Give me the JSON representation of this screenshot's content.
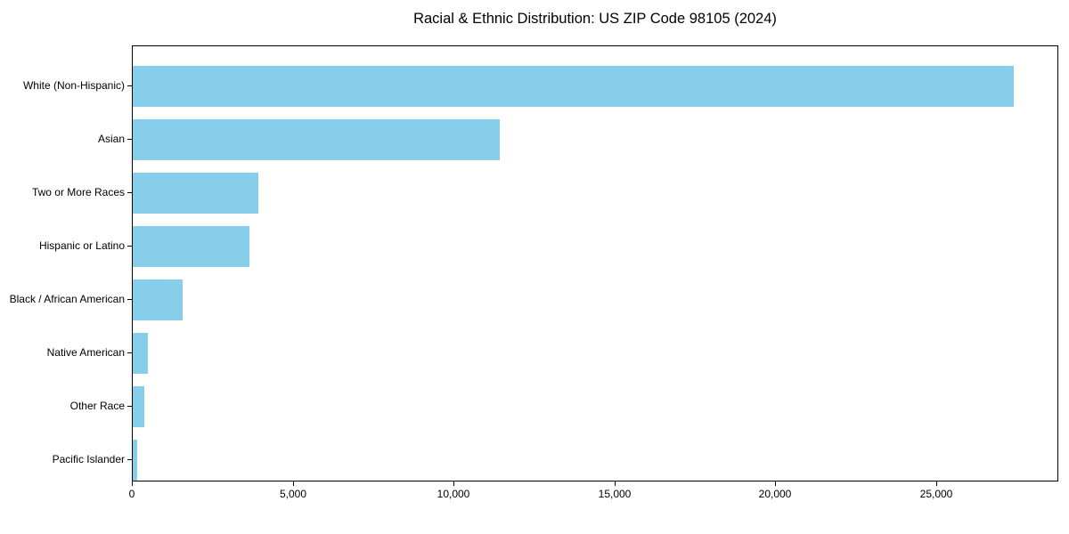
{
  "chart_data": {
    "type": "bar",
    "orientation": "horizontal",
    "title": "Racial & Ethnic Distribution: US ZIP Code 98105 (2024)",
    "categories": [
      "White (Non-Hispanic)",
      "Asian",
      "Two or More Races",
      "Hispanic or Latino",
      "Black / African American",
      "Native American",
      "Other Race",
      "Pacific Islander"
    ],
    "values": [
      27400,
      11400,
      3900,
      3620,
      1550,
      480,
      350,
      130
    ],
    "xlabel": "",
    "ylabel": "",
    "xlim": [
      0,
      28800
    ],
    "xticks": [
      0,
      5000,
      10000,
      15000,
      20000,
      25000
    ],
    "xtick_labels": [
      "0",
      "5,000",
      "10,000",
      "15,000",
      "20,000",
      "25,000"
    ],
    "bar_color": "#87CEEB",
    "axis_color": "#000000",
    "grid": false,
    "legend": null
  }
}
